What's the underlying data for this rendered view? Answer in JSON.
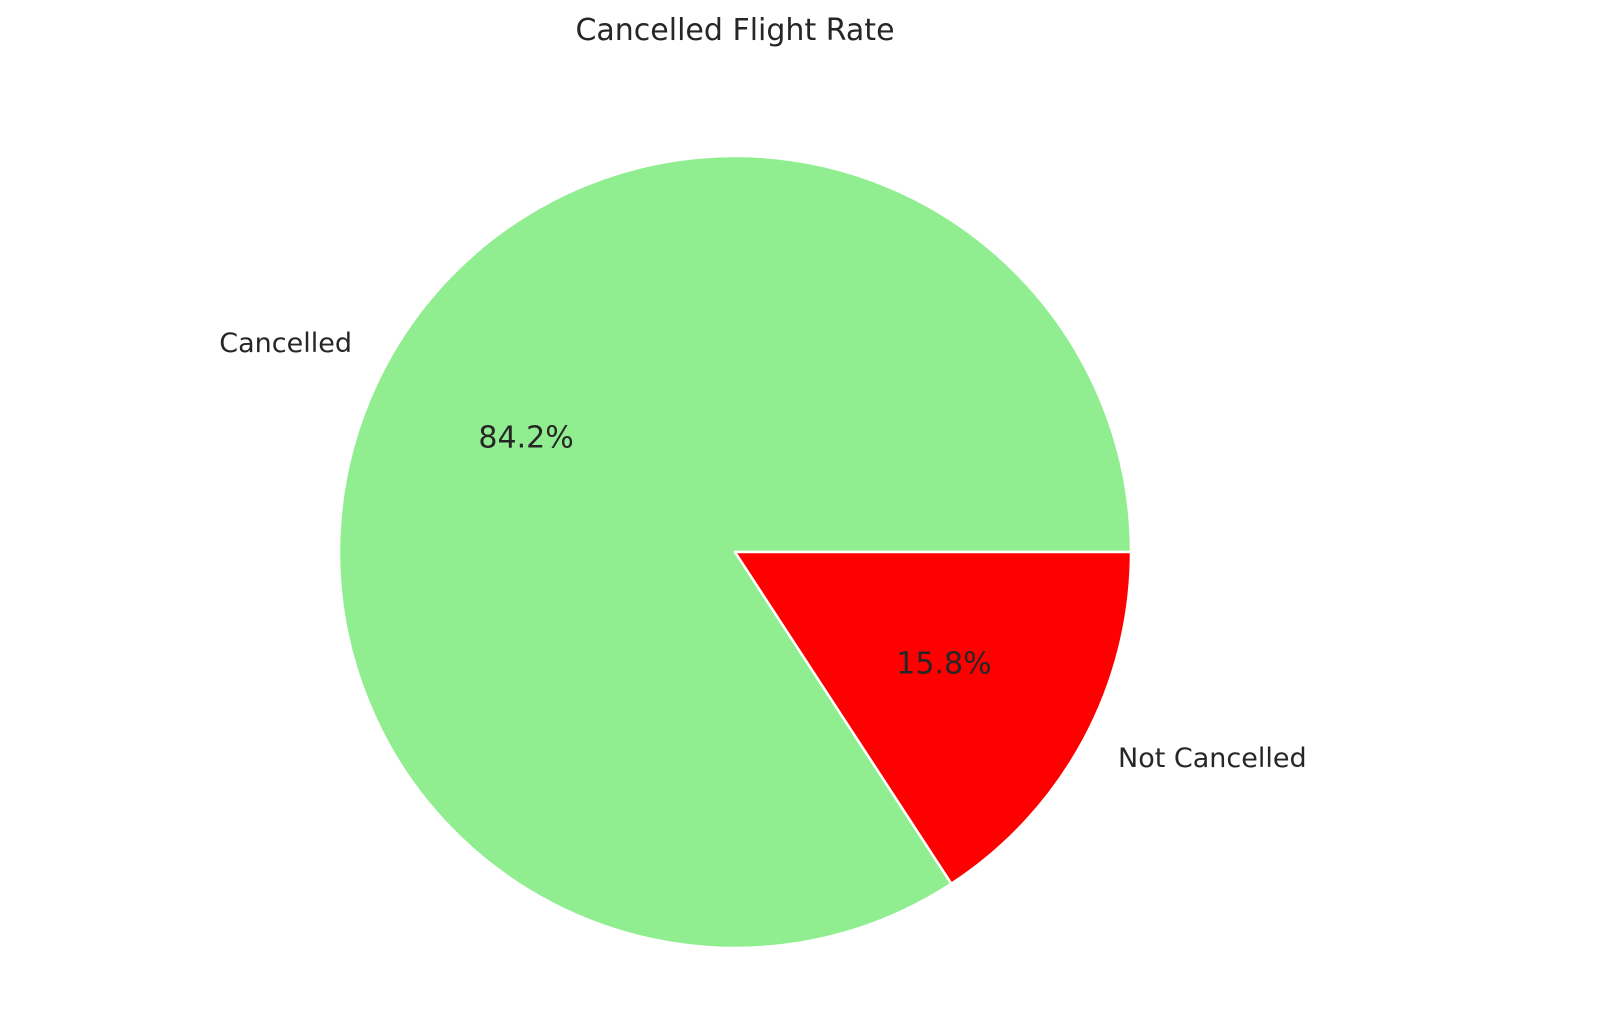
{
  "chart_data": {
    "type": "pie",
    "title": "Cancelled Flight Rate",
    "start_angle_deg": 0,
    "direction": "counterclockwise",
    "slices": [
      {
        "label": "Cancelled",
        "value": 84.2,
        "pct_label": "84.2%",
        "color": "#90ee90"
      },
      {
        "label": "Not Cancelled",
        "value": 15.8,
        "pct_label": "15.8%",
        "color": "#ff0000"
      }
    ],
    "wedge_edge_color": "#ffffff"
  }
}
